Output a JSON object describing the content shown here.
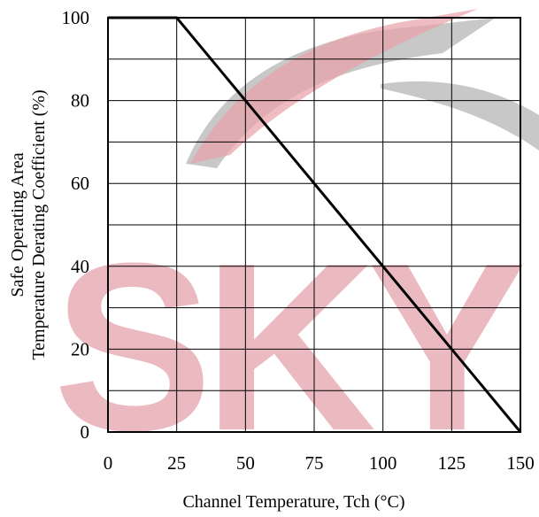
{
  "chart_data": {
    "type": "line",
    "title": "",
    "xlabel": "Channel Temperature, Tch  (°C)",
    "ylabel_lines": [
      "Safe Operating Area",
      "Temperature Derating Coefficient  (%)"
    ],
    "xlim": [
      0,
      150
    ],
    "ylim": [
      0,
      100
    ],
    "x_ticks": [
      0,
      25,
      50,
      75,
      100,
      125,
      150
    ],
    "y_ticks": [
      0,
      20,
      40,
      60,
      80,
      100
    ],
    "x_grid": [
      0,
      25,
      50,
      75,
      100,
      125,
      150
    ],
    "y_grid": [
      0,
      10,
      20,
      30,
      40,
      50,
      60,
      70,
      80,
      90,
      100
    ],
    "grid": true,
    "legend": "none",
    "series": [
      {
        "x": [
          0,
          25,
          150
        ],
        "y": [
          100,
          100,
          0
        ]
      }
    ]
  }
}
